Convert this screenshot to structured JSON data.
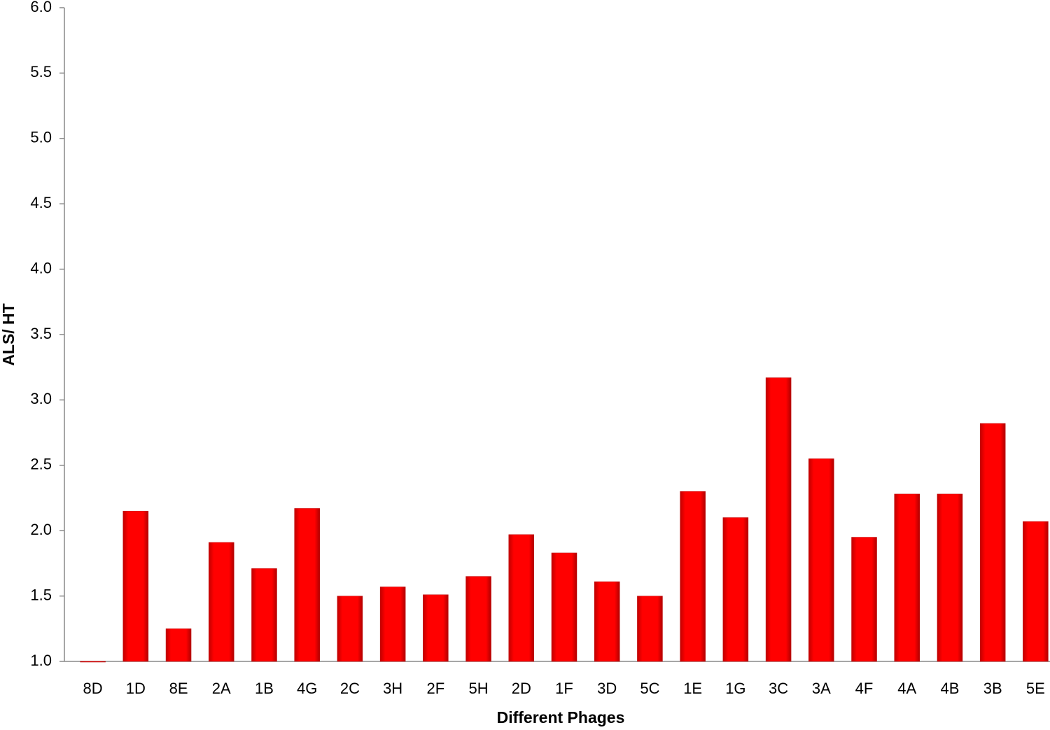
{
  "chart_data": {
    "type": "bar",
    "x_label": "Different Phages",
    "y_label": "ALS/ HT",
    "categories": [
      "8D",
      "1D",
      "8E",
      "2A",
      "1B",
      "4G",
      "2C",
      "3H",
      "2F",
      "5H",
      "2D",
      "1F",
      "3D",
      "5C",
      "1E",
      "1G",
      "3C",
      "3A",
      "4F",
      "4A",
      "4B",
      "3B",
      "5E"
    ],
    "values": [
      1.0,
      2.15,
      1.25,
      1.91,
      1.71,
      2.17,
      1.5,
      1.57,
      1.51,
      1.65,
      1.97,
      1.83,
      1.61,
      1.5,
      2.3,
      2.1,
      3.17,
      2.55,
      1.95,
      2.28,
      2.28,
      2.82,
      2.07
    ],
    "color": "#ff0000",
    "ylim": [
      1,
      6
    ],
    "yticks": [
      {
        "value": 1,
        "label": "1.0"
      },
      1.5,
      {
        "value": 2,
        "label": "2.0"
      },
      2.5,
      {
        "value": 3,
        "label": "3.0"
      },
      3.5,
      {
        "value": 4,
        "label": "4.0"
      },
      4.5,
      {
        "value": 5,
        "label": "5.0"
      },
      5.5,
      {
        "value": 6,
        "label": "6.0"
      }
    ],
    "grid": false
  }
}
